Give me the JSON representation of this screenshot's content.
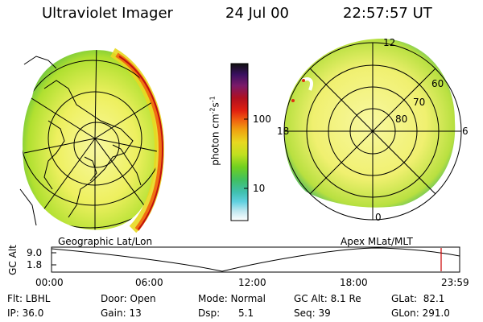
{
  "header": {
    "title": "Ultraviolet Imager",
    "date": "24 Jul 00",
    "time": "22:57:57 UT"
  },
  "colorbar": {
    "label": "photon cm",
    "label_sup": "-2",
    "label_s": "s",
    "label_sup2": "-1",
    "ticks": [
      "100",
      "10"
    ],
    "colors": [
      "#101010",
      "#3a1060",
      "#7a1a6a",
      "#b01020",
      "#e02010",
      "#f06010",
      "#f0a010",
      "#e8d820",
      "#c0e020",
      "#70d020",
      "#40c060",
      "#40c0b0",
      "#60d0e0",
      "#c0e8f0",
      "#ffffff"
    ]
  },
  "left_map": {
    "label": "Geographic Lat/Lon"
  },
  "right_map": {
    "label": "Apex MLat/MLT",
    "mlt_labels": {
      "top": "12",
      "left": "18",
      "right": "6",
      "bottom": "0"
    },
    "lat_labels": [
      "60",
      "70",
      "80"
    ]
  },
  "timeline": {
    "axis_title": "GC Alt",
    "y_ticks": [
      "9.0",
      "1.8"
    ],
    "x_ticks": [
      "00:00",
      "06:00",
      "12:00",
      "18:00",
      "23:59"
    ],
    "current_marker_color": "#cc0000"
  },
  "footer": {
    "flt": "Flt: LBHL",
    "ip": "IP: 36.0",
    "door": "Door: Open",
    "gain": "Gain: 13",
    "mode": "Mode: Normal",
    "dsp": "Dsp:      5.1",
    "gcalt": "GC Alt: 8.1 Re",
    "seq": "Seq: 39",
    "glat": "GLat:  82.1",
    "glon": "GLon: 291.0"
  }
}
